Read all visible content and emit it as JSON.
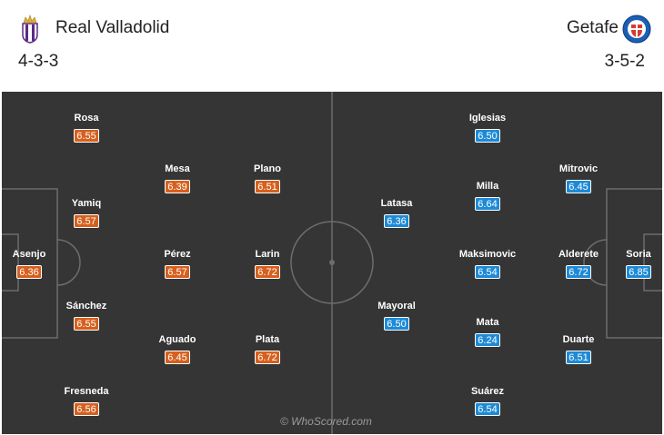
{
  "colors": {
    "home_rating": "#d6601e",
    "away_rating": "#1e8ad6",
    "pitch": "#353535",
    "pitch_lines": "#6d6d6d"
  },
  "home": {
    "name": "Real Valladolid",
    "formation": "4-3-3",
    "crest_icon": "real-valladolid-crest-icon",
    "players": [
      {
        "name": "Asenjo",
        "rating": "6.36"
      },
      {
        "name": "Rosa",
        "rating": "6.55"
      },
      {
        "name": "Yamiq",
        "rating": "6.57"
      },
      {
        "name": "Sánchez",
        "rating": "6.55"
      },
      {
        "name": "Fresneda",
        "rating": "6.56"
      },
      {
        "name": "Mesa",
        "rating": "6.39"
      },
      {
        "name": "Pérez",
        "rating": "6.57"
      },
      {
        "name": "Aguado",
        "rating": "6.45"
      },
      {
        "name": "Plano",
        "rating": "6.51"
      },
      {
        "name": "Larin",
        "rating": "6.72"
      },
      {
        "name": "Plata",
        "rating": "6.72"
      }
    ]
  },
  "away": {
    "name": "Getafe",
    "formation": "3-5-2",
    "crest_icon": "getafe-crest-icon",
    "players": [
      {
        "name": "Soria",
        "rating": "6.85"
      },
      {
        "name": "Mitrovic",
        "rating": "6.45"
      },
      {
        "name": "Alderete",
        "rating": "6.72"
      },
      {
        "name": "Duarte",
        "rating": "6.51"
      },
      {
        "name": "Iglesias",
        "rating": "6.50"
      },
      {
        "name": "Milla",
        "rating": "6.64"
      },
      {
        "name": "Maksimovic",
        "rating": "6.54"
      },
      {
        "name": "Mata",
        "rating": "6.24"
      },
      {
        "name": "Suárez",
        "rating": "6.54"
      },
      {
        "name": "Latasa",
        "rating": "6.36"
      },
      {
        "name": "Mayoral",
        "rating": "6.50"
      }
    ]
  },
  "watermark": "© WhoScored.com"
}
